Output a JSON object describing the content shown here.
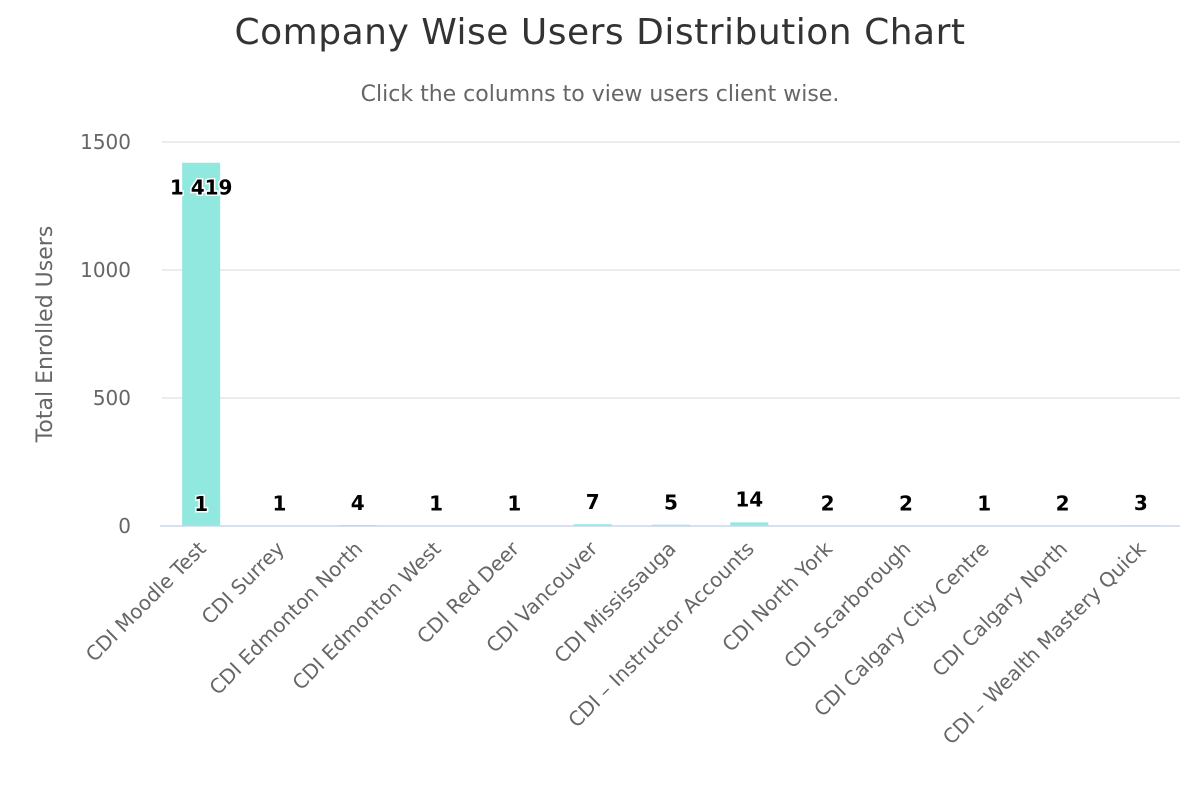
{
  "chart_data": {
    "type": "bar",
    "title": "Company Wise Users Distribution Chart",
    "subtitle": "Click the columns to view users client wise.",
    "ylabel": "Total Enrolled Users",
    "xlabel": "",
    "ylim": [
      0,
      1500
    ],
    "yticks": [
      0,
      500,
      1000,
      1500
    ],
    "grid": true,
    "bar_color": "#90e8df",
    "categories": [
      "CDI Moodle Test",
      "CDI Surrey",
      "CDI Edmonton North",
      "CDI Edmonton West",
      "CDI Red Deer",
      "CDI Vancouver",
      "CDI Mississauga",
      "CDI – Instructor Accounts",
      "CDI North York",
      "CDI Scarborough",
      "CDI Calgary City Centre",
      "CDI Calgary North",
      "CDI – Wealth Mastery Quick"
    ],
    "values": [
      1419,
      1,
      4,
      1,
      1,
      7,
      5,
      14,
      2,
      2,
      1,
      2,
      3
    ],
    "data_labels": [
      "1 419",
      "1",
      "4",
      "1",
      "1",
      "7",
      "5",
      "14",
      "2",
      "2",
      "1",
      "2",
      "3"
    ],
    "extra_label": "1"
  }
}
